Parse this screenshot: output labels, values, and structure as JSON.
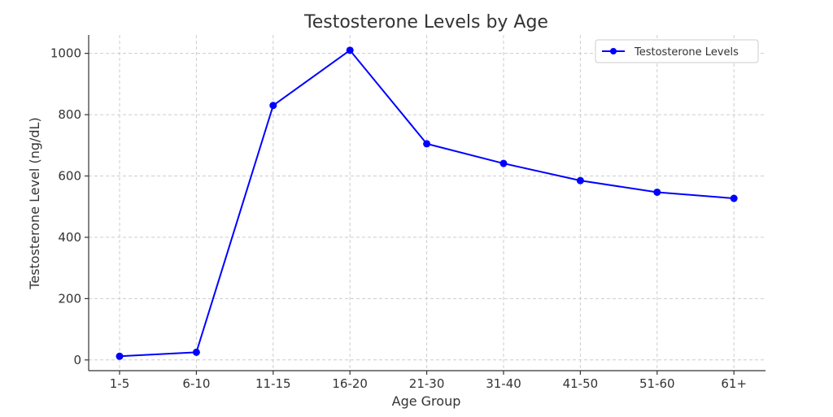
{
  "chart_data": {
    "type": "line",
    "title": "Testosterone Levels by Age",
    "xlabel": "Age Group",
    "ylabel": "Testosterone Level (ng/dL)",
    "categories": [
      "1-5",
      "6-10",
      "11-15",
      "16-20",
      "21-30",
      "31-40",
      "41-50",
      "51-60",
      "61+"
    ],
    "series": [
      {
        "name": "Testosterone Levels",
        "color": "#0000ff",
        "values": [
          12,
          25,
          830,
          1010,
          705,
          641,
          585,
          547,
          527
        ]
      }
    ],
    "ylim": [
      -35,
      1060
    ],
    "yticks": [
      0,
      200,
      400,
      600,
      800,
      1000
    ],
    "grid": true,
    "legend": "top-right"
  }
}
